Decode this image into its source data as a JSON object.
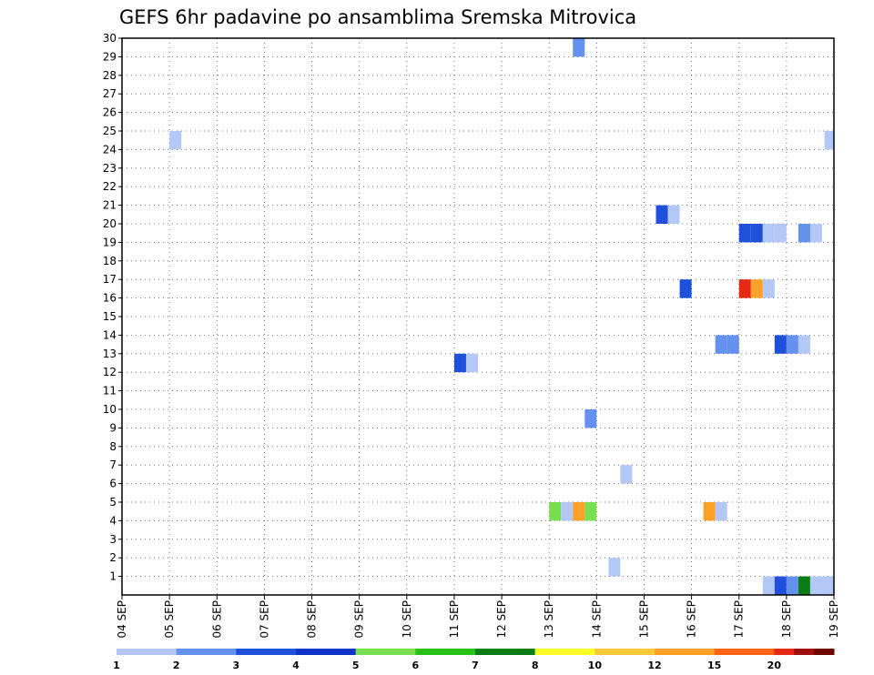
{
  "chart_data": {
    "type": "heatmap",
    "title": "GEFS 6hr padavine po ansamblima Sremska Mitrovica",
    "xlabel": "",
    "ylabel": "",
    "x_tick_labels": [
      "04 SEP",
      "05 SEP",
      "06 SEP",
      "07 SEP",
      "08 SEP",
      "09 SEP",
      "10 SEP",
      "11 SEP",
      "12 SEP",
      "13 SEP",
      "14 SEP",
      "15 SEP",
      "16 SEP",
      "17 SEP",
      "18 SEP",
      "19 SEP"
    ],
    "x_unit": "6-hour step (4 per day)",
    "xlim": [
      0,
      60
    ],
    "y_tick_labels": [
      "1",
      "2",
      "3",
      "4",
      "5",
      "6",
      "7",
      "8",
      "9",
      "10",
      "11",
      "12",
      "13",
      "14",
      "15",
      "16",
      "17",
      "18",
      "19",
      "20",
      "21",
      "22",
      "23",
      "24",
      "25",
      "26",
      "27",
      "28",
      "29",
      "30"
    ],
    "ylim": [
      0,
      30
    ],
    "grid": true,
    "colorbar": {
      "labels": [
        "1",
        "2",
        "3",
        "4",
        "5",
        "6",
        "7",
        "8",
        "10",
        "12",
        "15",
        "20"
      ],
      "colors": [
        "#b4c8f8",
        "#6490f0",
        "#1e50dc",
        "#0c32c8",
        "#78e050",
        "#28c014",
        "#0a7e14",
        "#ffff28",
        "#ffc83c",
        "#ffa028",
        "#ff6414",
        "#e62814",
        "#a00e0e",
        "#6e0000"
      ]
    },
    "cells": [
      {
        "step": 38.5,
        "member": 29.5,
        "color": "#6490f0"
      },
      {
        "step": 4.5,
        "member": 24.5,
        "color": "#b4c8f8"
      },
      {
        "step": 59.7,
        "member": 24.5,
        "color": "#b4c8f8"
      },
      {
        "step": 45.5,
        "member": 20.5,
        "color": "#1e50dc"
      },
      {
        "step": 46.5,
        "member": 20.5,
        "color": "#b4c8f8"
      },
      {
        "step": 52.5,
        "member": 19.5,
        "color": "#1e50dc"
      },
      {
        "step": 53.5,
        "member": 19.5,
        "color": "#1e50dc"
      },
      {
        "step": 54.5,
        "member": 19.5,
        "color": "#b4c8f8"
      },
      {
        "step": 55.5,
        "member": 19.5,
        "color": "#b4c8f8"
      },
      {
        "step": 57.5,
        "member": 19.5,
        "color": "#6490f0"
      },
      {
        "step": 58.5,
        "member": 19.5,
        "color": "#b4c8f8"
      },
      {
        "step": 47.5,
        "member": 16.5,
        "color": "#1e50dc"
      },
      {
        "step": 52.5,
        "member": 16.5,
        "color": "#e62814"
      },
      {
        "step": 53.5,
        "member": 16.5,
        "color": "#ffa028"
      },
      {
        "step": 54.5,
        "member": 16.5,
        "color": "#b4c8f8"
      },
      {
        "step": 50.5,
        "member": 13.5,
        "color": "#6490f0"
      },
      {
        "step": 51.5,
        "member": 13.5,
        "color": "#6490f0"
      },
      {
        "step": 55.5,
        "member": 13.5,
        "color": "#1e50dc"
      },
      {
        "step": 56.5,
        "member": 13.5,
        "color": "#6490f0"
      },
      {
        "step": 57.5,
        "member": 13.5,
        "color": "#b4c8f8"
      },
      {
        "step": 28.5,
        "member": 12.5,
        "color": "#1e50dc"
      },
      {
        "step": 29.5,
        "member": 12.5,
        "color": "#b4c8f8"
      },
      {
        "step": 39.5,
        "member": 9.5,
        "color": "#6490f0"
      },
      {
        "step": 42.5,
        "member": 6.5,
        "color": "#b4c8f8"
      },
      {
        "step": 36.5,
        "member": 4.5,
        "color": "#78e050"
      },
      {
        "step": 37.5,
        "member": 4.5,
        "color": "#b4c8f8"
      },
      {
        "step": 38.5,
        "member": 4.5,
        "color": "#ffa028"
      },
      {
        "step": 39.5,
        "member": 4.5,
        "color": "#78e050"
      },
      {
        "step": 49.5,
        "member": 4.5,
        "color": "#ffa028"
      },
      {
        "step": 50.5,
        "member": 4.5,
        "color": "#b4c8f8"
      },
      {
        "step": 41.5,
        "member": 1.5,
        "color": "#b4c8f8"
      },
      {
        "step": 54.5,
        "member": 0.5,
        "color": "#b4c8f8"
      },
      {
        "step": 55.5,
        "member": 0.5,
        "color": "#1e50dc"
      },
      {
        "step": 56.5,
        "member": 0.5,
        "color": "#6490f0"
      },
      {
        "step": 57.5,
        "member": 0.5,
        "color": "#0a7e14"
      },
      {
        "step": 58.5,
        "member": 0.5,
        "color": "#b4c8f8"
      },
      {
        "step": 59.5,
        "member": 0.5,
        "color": "#b4c8f8"
      }
    ]
  }
}
